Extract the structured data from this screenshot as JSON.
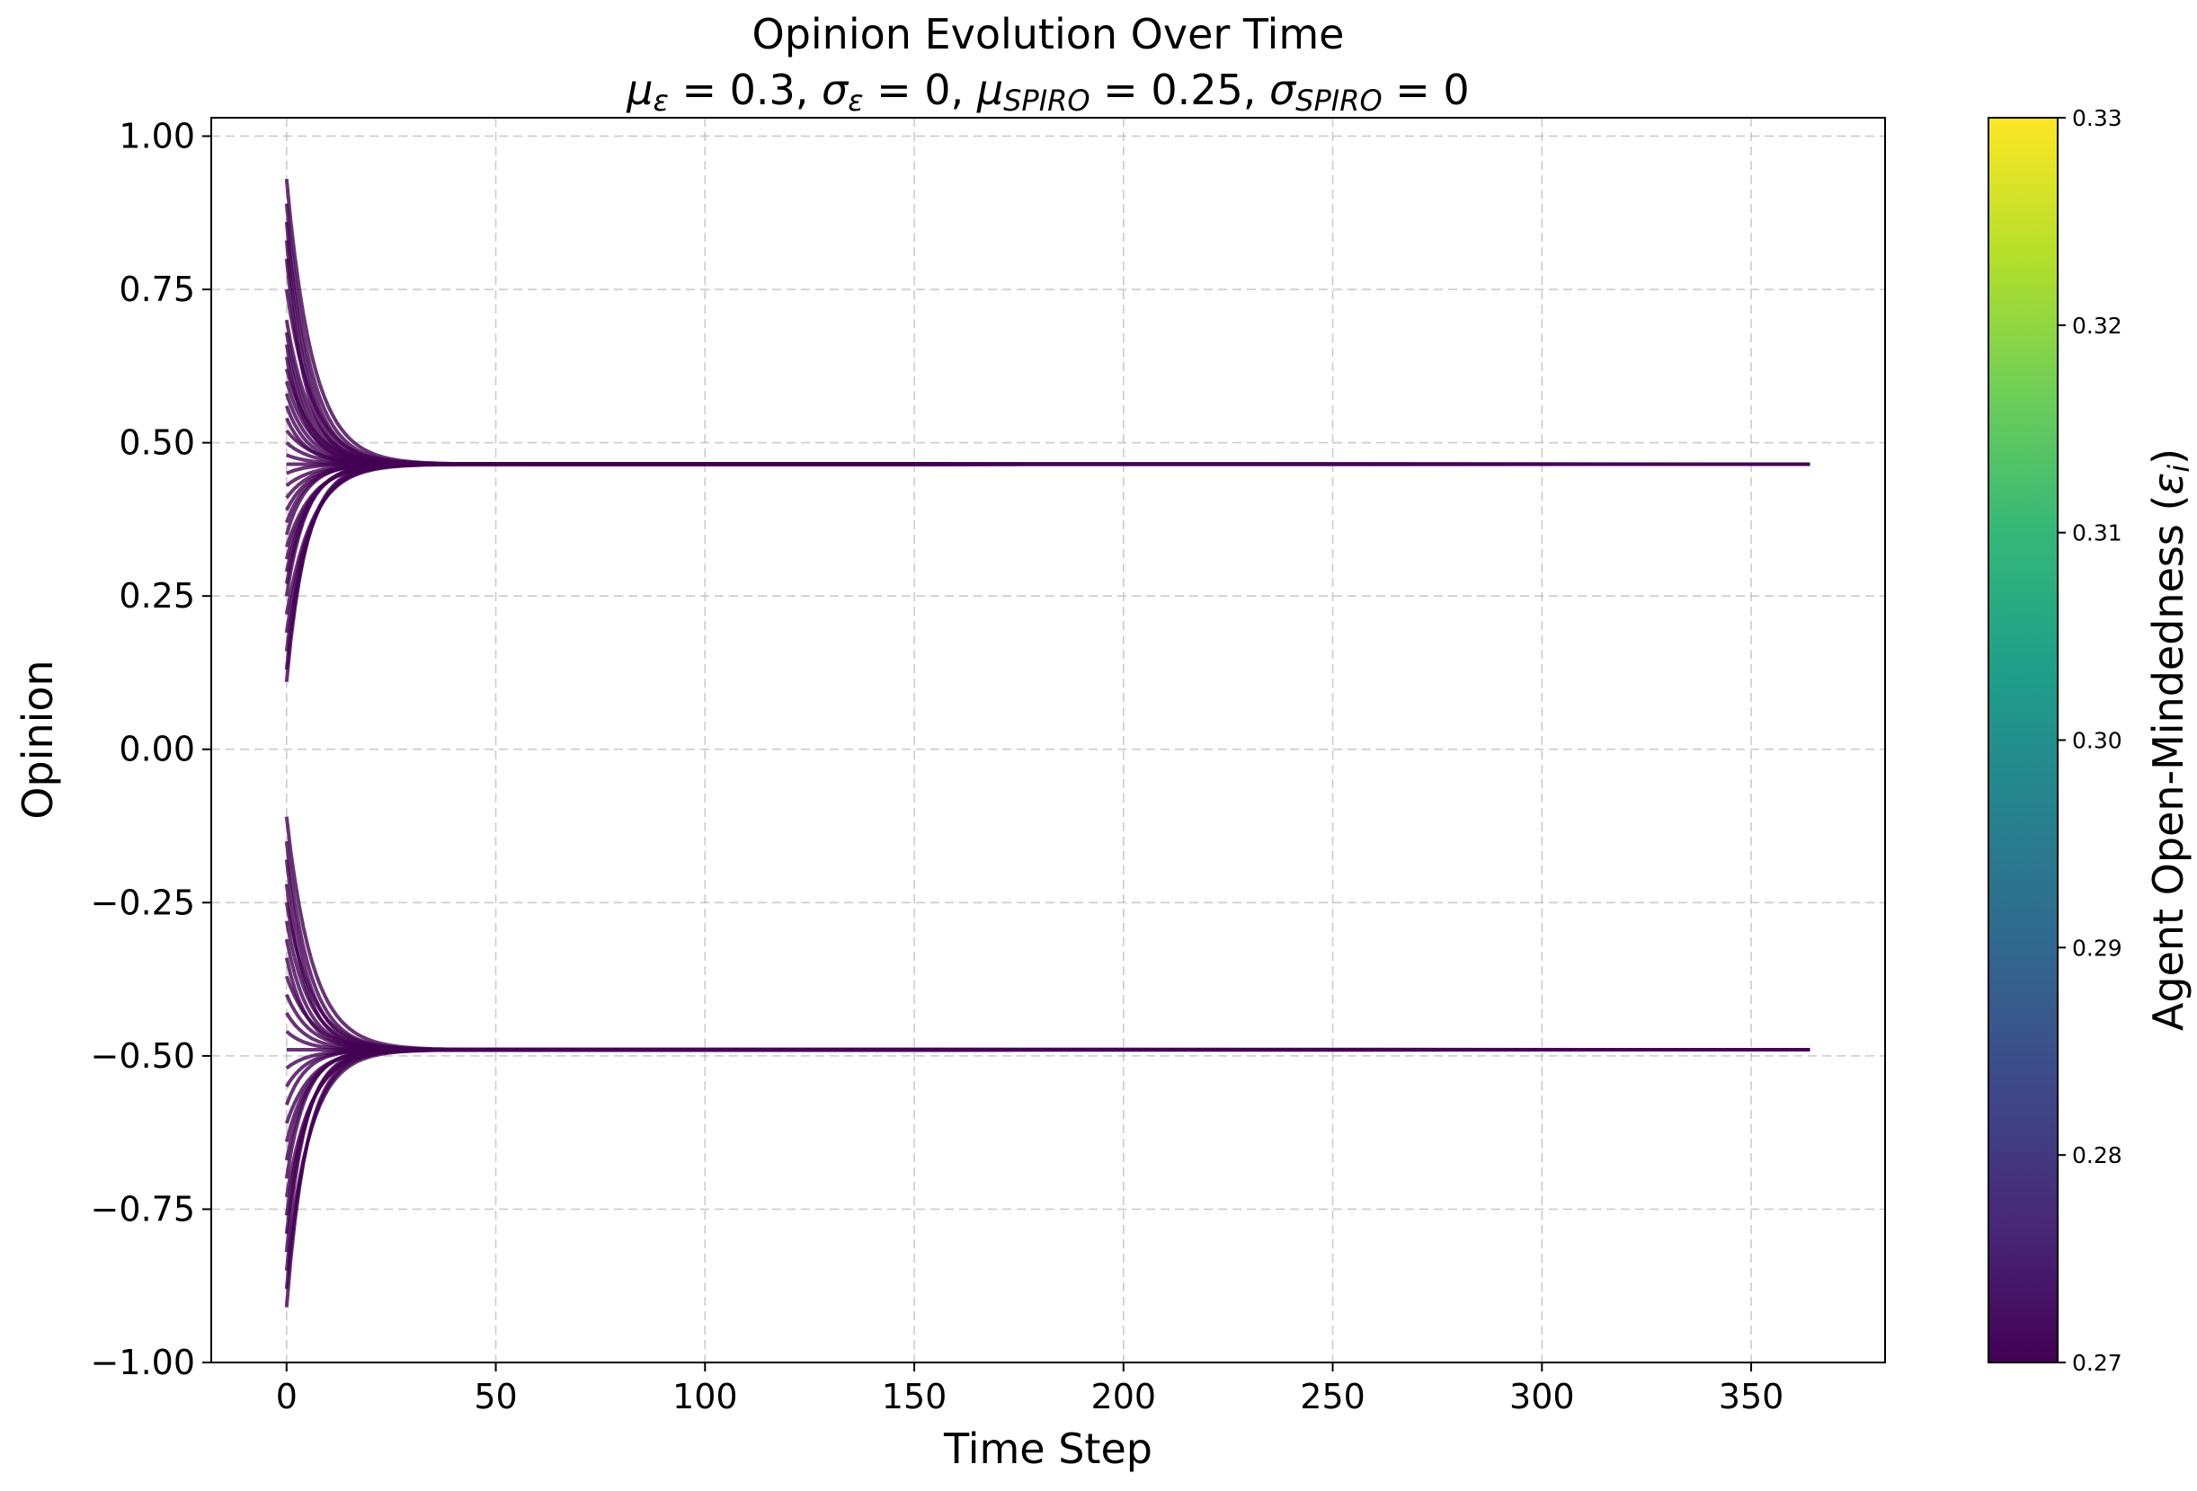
{
  "chart_data": {
    "type": "line",
    "title": "Opinion Evolution Over Time",
    "subtitle_parts": [
      {
        "text": "μ",
        "italic": true
      },
      {
        "text": "ε",
        "italic": true,
        "sub": true
      },
      {
        "text": " = 0.3, ",
        "italic": false
      },
      {
        "text": "σ",
        "italic": true
      },
      {
        "text": "ε",
        "italic": true,
        "sub": true
      },
      {
        "text": " = 0, ",
        "italic": false
      },
      {
        "text": "μ",
        "italic": true
      },
      {
        "text": "SPIRO",
        "italic": true,
        "sub": true
      },
      {
        "text": " = 0.25, ",
        "italic": false
      },
      {
        "text": "σ",
        "italic": true
      },
      {
        "text": "SPIRO",
        "italic": true,
        "sub": true
      },
      {
        "text": " = 0",
        "italic": false
      }
    ],
    "xlabel": "Time Step",
    "ylabel": "Opinion",
    "xlim": [
      -18,
      382
    ],
    "ylim": [
      -1.0,
      1.03
    ],
    "x_ticks": [
      0,
      50,
      100,
      150,
      200,
      250,
      300,
      350
    ],
    "x_tick_labels": [
      "0",
      "50",
      "100",
      "150",
      "200",
      "250",
      "300",
      "350"
    ],
    "y_ticks": [
      1.0,
      0.75,
      0.5,
      0.25,
      0.0,
      -0.25,
      -0.5,
      -0.75,
      -1.0
    ],
    "y_tick_labels": [
      "1.00",
      "0.75",
      "0.50",
      "0.25",
      "0.00",
      "−0.25",
      "−0.50",
      "−0.75",
      "−1.00"
    ],
    "grid": true,
    "t_end": 364,
    "line_color": "#440154",
    "line_opacity": 0.8,
    "clusters": [
      {
        "name": "upper cluster",
        "converged_value": 0.465,
        "initial_opinions": [
          0.93,
          0.89,
          0.86,
          0.83,
          0.8,
          0.75,
          0.7,
          0.68,
          0.66,
          0.64,
          0.62,
          0.6,
          0.58,
          0.56,
          0.54,
          0.52,
          0.5,
          0.48,
          0.465,
          0.45,
          0.43,
          0.41,
          0.39,
          0.37,
          0.35,
          0.33,
          0.31,
          0.29,
          0.27,
          0.25,
          0.22,
          0.19,
          0.16,
          0.13,
          0.11
        ]
      },
      {
        "name": "lower cluster",
        "converged_value": -0.49,
        "initial_opinions": [
          -0.11,
          -0.15,
          -0.18,
          -0.22,
          -0.25,
          -0.28,
          -0.31,
          -0.34,
          -0.37,
          -0.4,
          -0.43,
          -0.46,
          -0.49,
          -0.52,
          -0.55,
          -0.58,
          -0.61,
          -0.64,
          -0.67,
          -0.7,
          -0.73,
          -0.76,
          -0.79,
          -0.82,
          -0.85,
          -0.88,
          -0.91
        ]
      }
    ],
    "colorbar": {
      "label_base": "Agent Open-Mindedness (",
      "label_symbol": "ε",
      "label_sub": "i",
      "label_end": ")",
      "min": 0.27,
      "max": 0.33,
      "ticks": [
        0.27,
        0.28,
        0.29,
        0.3,
        0.31,
        0.32,
        0.33
      ],
      "tick_labels": [
        "0.27",
        "0.28",
        "0.29",
        "0.30",
        "0.31",
        "0.32",
        "0.33"
      ],
      "colormap": "viridis",
      "stops": [
        "#440154",
        "#482878",
        "#3e4989",
        "#31688e",
        "#26828e",
        "#1f9e89",
        "#35b779",
        "#6ece58",
        "#b5de2b",
        "#fde725"
      ]
    }
  }
}
